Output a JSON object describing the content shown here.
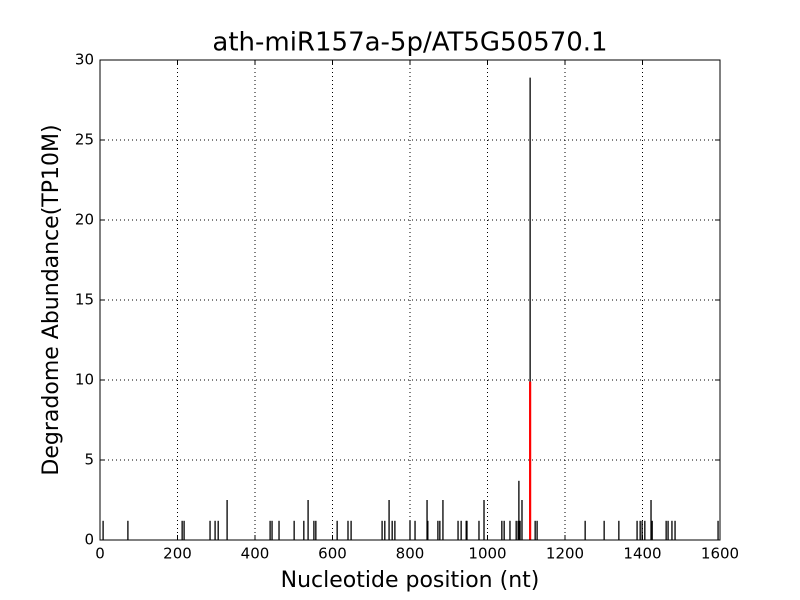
{
  "chart_data": {
    "type": "vlines",
    "title": "ath-miR157a-5p/AT5G50570.1",
    "xlabel": "Nucleotide position (nt)",
    "ylabel": "Degradome Abundance(TP10M)",
    "xlim": [
      0,
      1600
    ],
    "xticks": [
      0,
      200,
      400,
      600,
      800,
      1000,
      1200,
      1400,
      1600
    ],
    "ylim": [
      0,
      30
    ],
    "yticks": [
      0,
      5,
      10,
      15,
      20,
      25,
      30
    ],
    "grid": true,
    "series": [
      {
        "color": "#000000",
        "x": [
          8,
          72,
          212,
          217,
          284,
          297,
          305,
          328,
          439,
          444,
          462,
          501,
          526,
          537,
          552,
          557,
          612,
          640,
          648,
          728,
          735,
          746,
          754,
          761,
          800,
          813,
          844,
          846,
          872,
          877,
          885,
          924,
          932,
          945,
          947,
          978,
          991,
          1037,
          1043,
          1058,
          1074,
          1079,
          1081,
          1084,
          1089,
          1110,
          1123,
          1128,
          1252,
          1301,
          1339,
          1386,
          1394,
          1399,
          1406,
          1422,
          1425,
          1461,
          1466,
          1476,
          1484,
          1595
        ],
        "values": [
          1.2,
          1.2,
          1.2,
          1.2,
          1.2,
          1.2,
          1.2,
          2.5,
          1.2,
          1.2,
          1.2,
          1.2,
          1.2,
          2.5,
          1.2,
          1.2,
          1.2,
          1.2,
          1.2,
          1.2,
          1.2,
          2.5,
          1.2,
          1.2,
          1.2,
          1.2,
          2.5,
          1.2,
          1.2,
          1.2,
          2.5,
          1.2,
          1.2,
          1.2,
          1.2,
          1.2,
          2.5,
          1.2,
          1.2,
          1.2,
          1.2,
          1.2,
          3.7,
          1.2,
          2.5,
          28.9,
          1.2,
          1.2,
          1.2,
          1.2,
          1.2,
          1.2,
          1.2,
          1.2,
          1.2,
          2.5,
          1.2,
          1.2,
          1.2,
          1.2,
          1.2,
          1.2
        ]
      },
      {
        "color": "#ff0000",
        "x": [
          1110
        ],
        "values": [
          9.9
        ]
      }
    ]
  }
}
